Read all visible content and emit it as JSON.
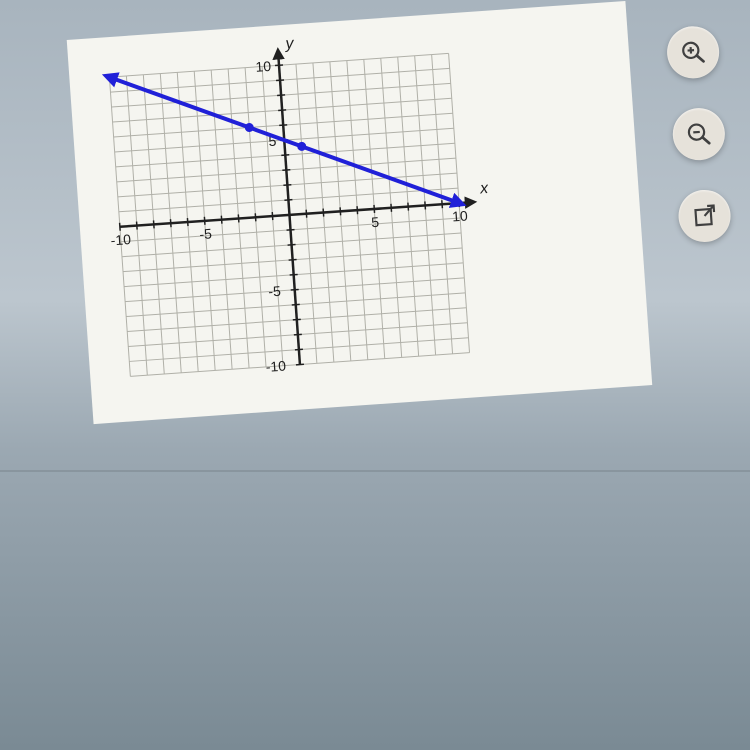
{
  "chart": {
    "type": "line",
    "xlim": [
      -10,
      10
    ],
    "ylim": [
      -10,
      10
    ],
    "xtick_step": 5,
    "ytick_step": 5,
    "grid_step": 1,
    "xlabel": "x",
    "ylabel": "y",
    "xtick_labels": {
      "-10": "-10",
      "-5": "-5",
      "5": "5",
      "10": "10"
    },
    "ytick_labels": {
      "-10": "-10",
      "-5": "-5",
      "5": "5",
      "10": "10"
    },
    "background_color": "#f5f5f0",
    "grid_color": "#b0b0a8",
    "axis_color": "#202020",
    "line_color": "#2020d8",
    "line_width": 4,
    "label_fontsize": 16,
    "tick_fontsize": 14,
    "points": [
      {
        "x": -2,
        "y": 6,
        "r": 4.5
      },
      {
        "x": 1,
        "y": 4.5,
        "r": 4.5
      }
    ],
    "line_start": {
      "x": -10,
      "y": 10
    },
    "line_end": {
      "x": 10,
      "y": 0
    },
    "arrow_size": 14
  },
  "controls": {
    "zoom_in": "zoom-in",
    "zoom_out": "zoom-out",
    "popout": "popout"
  }
}
